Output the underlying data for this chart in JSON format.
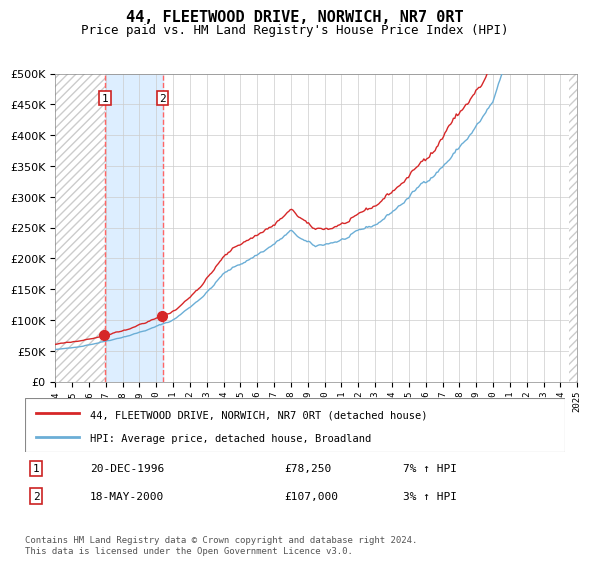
{
  "title": "44, FLEETWOOD DRIVE, NORWICH, NR7 0RT",
  "subtitle": "Price paid vs. HM Land Registry's House Price Index (HPI)",
  "legend_line1": "44, FLEETWOOD DRIVE, NORWICH, NR7 0RT (detached house)",
  "legend_line2": "HPI: Average price, detached house, Broadland",
  "annotation1_date": "20-DEC-1996",
  "annotation1_price": "£78,250",
  "annotation1_hpi": "7% ↑ HPI",
  "annotation2_date": "18-MAY-2000",
  "annotation2_price": "£107,000",
  "annotation2_hpi": "3% ↑ HPI",
  "footnote": "Contains HM Land Registry data © Crown copyright and database right 2024.\nThis data is licensed under the Open Government Licence v3.0.",
  "vline1_year": 1996.96,
  "vline2_year": 2000.38,
  "sale1_year": 1996.96,
  "sale1_price": 78250,
  "sale2_year": 2000.38,
  "sale2_price": 107000,
  "hpi_color": "#6baed6",
  "price_color": "#d62728",
  "vline_color": "#ff6666",
  "shade_color": "#ddeeff",
  "marker_color": "#d62728",
  "ylim": [
    0,
    500000
  ],
  "yticks": [
    0,
    50000,
    100000,
    150000,
    200000,
    250000,
    300000,
    350000,
    400000,
    450000,
    500000
  ],
  "start_year": 1994,
  "end_year": 2025
}
